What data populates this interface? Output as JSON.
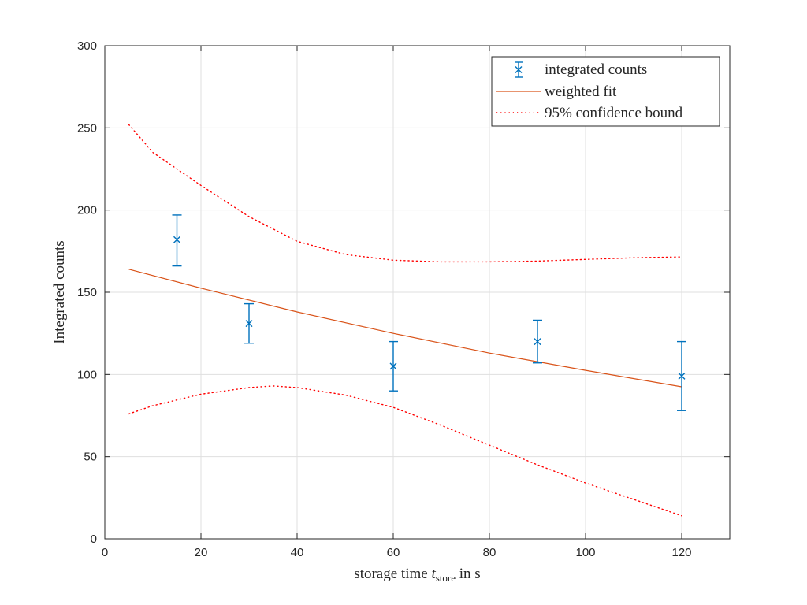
{
  "chart_data": {
    "type": "scatter",
    "title": "",
    "xlabel": {
      "prefix": "storage time ",
      "var": "t",
      "sub": "store",
      "suffix": " in s"
    },
    "ylabel": "Integrated counts",
    "xlim": [
      0,
      130
    ],
    "ylim": [
      0,
      300
    ],
    "xticks": [
      0,
      20,
      40,
      60,
      80,
      100,
      120
    ],
    "yticks": [
      0,
      50,
      100,
      150,
      200,
      250,
      300
    ],
    "grid": true,
    "legend_position": "top-right",
    "legend": [
      "integrated counts",
      "weighted fit",
      "95% confidence bound"
    ],
    "series": [
      {
        "name": "integrated counts",
        "kind": "errorbar",
        "color": "#0072BD",
        "points": [
          {
            "x": 15,
            "y": 182,
            "lo": 166,
            "hi": 197
          },
          {
            "x": 30,
            "y": 131,
            "lo": 119,
            "hi": 143
          },
          {
            "x": 60,
            "y": 105,
            "lo": 90,
            "hi": 120
          },
          {
            "x": 90,
            "y": 120,
            "lo": 107,
            "hi": 133
          },
          {
            "x": 120,
            "y": 99,
            "lo": 78,
            "hi": 120
          }
        ]
      },
      {
        "name": "weighted fit",
        "kind": "line",
        "color": "#D95319",
        "x": [
          5,
          20,
          40,
          60,
          80,
          100,
          120
        ],
        "y": [
          164,
          152.5,
          138,
          125,
          113,
          102.5,
          92.5
        ]
      },
      {
        "name": "95% confidence bound",
        "kind": "dotted",
        "color": "#FF0000",
        "upper": {
          "x": [
            5,
            10,
            20,
            30,
            40,
            50,
            60,
            70,
            80,
            90,
            100,
            110,
            120
          ],
          "y": [
            252,
            235,
            215,
            196,
            181,
            173,
            169.5,
            168.5,
            168.5,
            169,
            170,
            171,
            171.5
          ]
        },
        "lower": {
          "x": [
            5,
            10,
            20,
            30,
            35,
            40,
            50,
            60,
            70,
            80,
            90,
            100,
            110,
            120
          ],
          "y": [
            76,
            81,
            88,
            92,
            93,
            92,
            87.5,
            80,
            69,
            57,
            45,
            34,
            24,
            14
          ]
        }
      }
    ]
  }
}
